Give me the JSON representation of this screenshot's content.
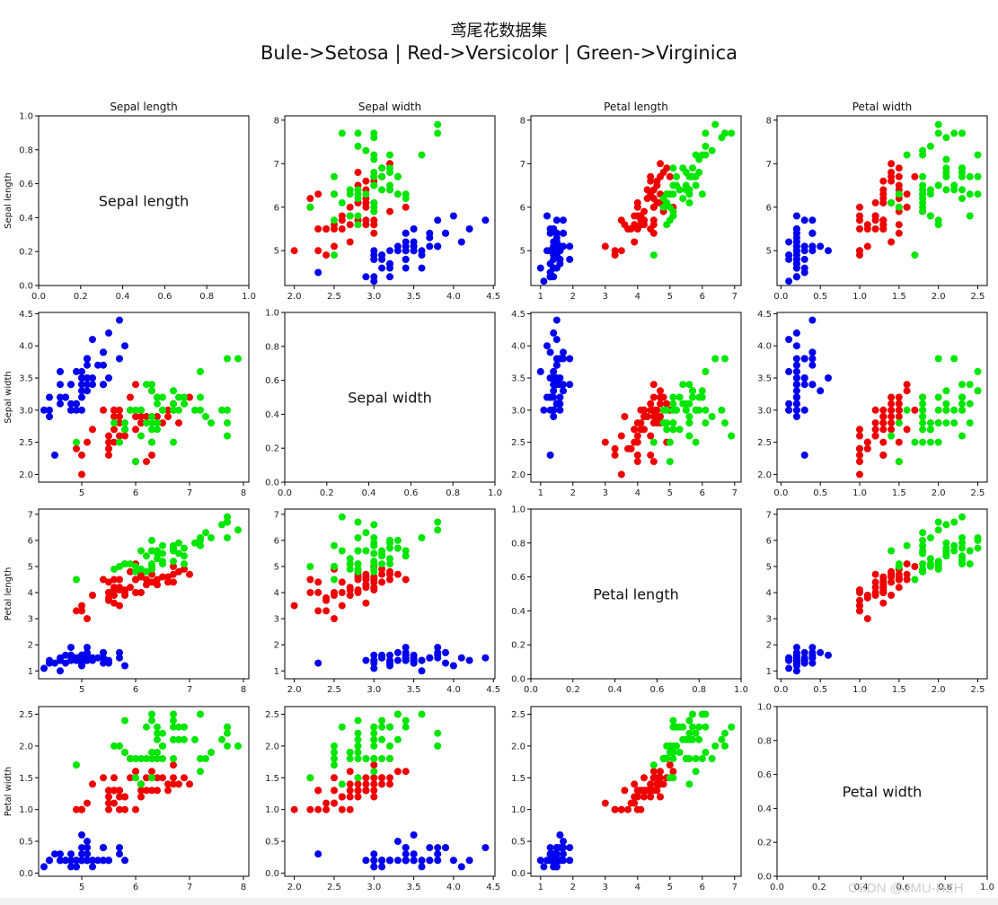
{
  "figure": {
    "title_line1": "鸢尾花数据集",
    "title_line2": "Bule->Setosa | Red->Versicolor | Green->Virginica",
    "watermark": "CSDN @JMU-HZH"
  },
  "colors": {
    "setosa": "#0000ee",
    "versicolor": "#ee0000",
    "virginica": "#00e600",
    "axes": "#000000"
  },
  "chart_data": {
    "type": "scatter",
    "layout": "4x4 scatter matrix",
    "features": [
      "Sepal length",
      "Sepal width",
      "Petal length",
      "Petal width"
    ],
    "col_titles": [
      "Sepal length",
      "Sepal width",
      "Petal length",
      "Petal width"
    ],
    "row_labels": [
      "Sepal length",
      "Sepal width",
      "Petal length",
      "Petal width"
    ],
    "diagonal_labels": [
      "Sepal length",
      "Sepal width",
      "Petal length",
      "Petal width"
    ],
    "diagonal_axes": {
      "xlim": [
        0,
        1
      ],
      "ylim": [
        0,
        1
      ],
      "ticks": [
        0.0,
        0.2,
        0.4,
        0.6,
        0.8,
        1.0
      ],
      "tick_labels": [
        "0.0",
        "0.2",
        "0.4",
        "0.6",
        "0.8",
        "1.0"
      ]
    },
    "feature_axes": [
      {
        "lim": [
          4.2,
          8.1
        ],
        "ticks": [
          5,
          6,
          7,
          8
        ],
        "tick_labels": [
          "5",
          "6",
          "7",
          "8"
        ]
      },
      {
        "lim": [
          1.88,
          4.52
        ],
        "ticks": [
          2.0,
          2.5,
          3.0,
          3.5,
          4.0,
          4.5
        ],
        "tick_labels": [
          "2.0",
          "2.5",
          "3.0",
          "3.5",
          "4.0",
          "4.5"
        ]
      },
      {
        "lim": [
          0.7,
          7.2
        ],
        "ticks": [
          1,
          2,
          3,
          4,
          5,
          6,
          7
        ],
        "tick_labels": [
          "1",
          "2",
          "3",
          "4",
          "5",
          "6",
          "7"
        ]
      },
      {
        "lim": [
          -0.05,
          2.62
        ],
        "ticks": [
          0.0,
          0.5,
          1.0,
          1.5,
          2.0,
          2.5
        ],
        "tick_labels": [
          "0.0",
          "0.5",
          "1.0",
          "1.5",
          "2.0",
          "2.5"
        ]
      }
    ],
    "series": [
      {
        "name": "Setosa",
        "color": "#0000ee",
        "points": [
          [
            5.1,
            3.5,
            1.4,
            0.2
          ],
          [
            4.9,
            3.0,
            1.4,
            0.2
          ],
          [
            4.7,
            3.2,
            1.3,
            0.2
          ],
          [
            4.6,
            3.1,
            1.5,
            0.2
          ],
          [
            5.0,
            3.6,
            1.4,
            0.2
          ],
          [
            5.4,
            3.9,
            1.7,
            0.4
          ],
          [
            4.6,
            3.4,
            1.4,
            0.3
          ],
          [
            5.0,
            3.4,
            1.5,
            0.2
          ],
          [
            4.4,
            2.9,
            1.4,
            0.2
          ],
          [
            4.9,
            3.1,
            1.5,
            0.1
          ],
          [
            5.4,
            3.7,
            1.5,
            0.2
          ],
          [
            4.8,
            3.4,
            1.6,
            0.2
          ],
          [
            4.8,
            3.0,
            1.4,
            0.1
          ],
          [
            4.3,
            3.0,
            1.1,
            0.1
          ],
          [
            5.8,
            4.0,
            1.2,
            0.2
          ],
          [
            5.7,
            4.4,
            1.5,
            0.4
          ],
          [
            5.4,
            3.9,
            1.3,
            0.4
          ],
          [
            5.1,
            3.5,
            1.4,
            0.3
          ],
          [
            5.7,
            3.8,
            1.7,
            0.3
          ],
          [
            5.1,
            3.8,
            1.5,
            0.3
          ],
          [
            5.4,
            3.4,
            1.7,
            0.2
          ],
          [
            5.1,
            3.7,
            1.5,
            0.4
          ],
          [
            4.6,
            3.6,
            1.0,
            0.2
          ],
          [
            5.1,
            3.3,
            1.7,
            0.5
          ],
          [
            4.8,
            3.4,
            1.9,
            0.2
          ],
          [
            5.0,
            3.0,
            1.6,
            0.2
          ],
          [
            5.0,
            3.4,
            1.6,
            0.4
          ],
          [
            5.2,
            3.5,
            1.5,
            0.2
          ],
          [
            5.2,
            3.4,
            1.4,
            0.2
          ],
          [
            4.7,
            3.2,
            1.6,
            0.2
          ],
          [
            4.8,
            3.1,
            1.6,
            0.2
          ],
          [
            5.4,
            3.4,
            1.5,
            0.4
          ],
          [
            5.2,
            4.1,
            1.5,
            0.1
          ],
          [
            5.5,
            4.2,
            1.4,
            0.2
          ],
          [
            4.9,
            3.1,
            1.5,
            0.2
          ],
          [
            5.0,
            3.2,
            1.2,
            0.2
          ],
          [
            5.5,
            3.5,
            1.3,
            0.2
          ],
          [
            4.9,
            3.6,
            1.4,
            0.1
          ],
          [
            4.4,
            3.0,
            1.3,
            0.2
          ],
          [
            5.1,
            3.4,
            1.5,
            0.2
          ],
          [
            5.0,
            3.5,
            1.3,
            0.3
          ],
          [
            4.5,
            2.3,
            1.3,
            0.3
          ],
          [
            4.4,
            3.2,
            1.3,
            0.2
          ],
          [
            5.0,
            3.5,
            1.6,
            0.6
          ],
          [
            5.1,
            3.8,
            1.9,
            0.4
          ],
          [
            4.8,
            3.0,
            1.4,
            0.3
          ],
          [
            5.1,
            3.8,
            1.6,
            0.2
          ],
          [
            4.6,
            3.2,
            1.4,
            0.2
          ],
          [
            5.3,
            3.7,
            1.5,
            0.2
          ],
          [
            5.0,
            3.3,
            1.4,
            0.2
          ]
        ]
      },
      {
        "name": "Versicolor",
        "color": "#ee0000",
        "points": [
          [
            7.0,
            3.2,
            4.7,
            1.4
          ],
          [
            6.4,
            3.2,
            4.5,
            1.5
          ],
          [
            6.9,
            3.1,
            4.9,
            1.5
          ],
          [
            5.5,
            2.3,
            4.0,
            1.3
          ],
          [
            6.5,
            2.8,
            4.6,
            1.5
          ],
          [
            5.7,
            2.8,
            4.5,
            1.3
          ],
          [
            6.3,
            3.3,
            4.7,
            1.6
          ],
          [
            4.9,
            2.4,
            3.3,
            1.0
          ],
          [
            6.6,
            2.9,
            4.6,
            1.3
          ],
          [
            5.2,
            2.7,
            3.9,
            1.4
          ],
          [
            5.0,
            2.0,
            3.5,
            1.0
          ],
          [
            5.9,
            3.0,
            4.2,
            1.5
          ],
          [
            6.0,
            2.2,
            4.0,
            1.0
          ],
          [
            6.1,
            2.9,
            4.7,
            1.4
          ],
          [
            5.6,
            2.9,
            3.6,
            1.3
          ],
          [
            6.7,
            3.1,
            4.4,
            1.4
          ],
          [
            5.6,
            3.0,
            4.5,
            1.5
          ],
          [
            5.8,
            2.7,
            4.1,
            1.0
          ],
          [
            6.2,
            2.2,
            4.5,
            1.5
          ],
          [
            5.6,
            2.5,
            3.9,
            1.1
          ],
          [
            5.9,
            3.2,
            4.8,
            1.8
          ],
          [
            6.1,
            2.8,
            4.0,
            1.3
          ],
          [
            6.3,
            2.5,
            4.9,
            1.5
          ],
          [
            6.1,
            2.8,
            4.7,
            1.2
          ],
          [
            6.4,
            2.9,
            4.3,
            1.3
          ],
          [
            6.6,
            3.0,
            4.4,
            1.4
          ],
          [
            6.8,
            2.8,
            4.8,
            1.4
          ],
          [
            6.7,
            3.0,
            5.0,
            1.7
          ],
          [
            6.0,
            2.9,
            4.5,
            1.5
          ],
          [
            5.7,
            2.6,
            3.5,
            1.0
          ],
          [
            5.5,
            2.4,
            3.8,
            1.1
          ],
          [
            5.5,
            2.4,
            3.7,
            1.0
          ],
          [
            5.8,
            2.7,
            3.9,
            1.2
          ],
          [
            6.0,
            2.7,
            5.1,
            1.6
          ],
          [
            5.4,
            3.0,
            4.5,
            1.5
          ],
          [
            6.0,
            3.4,
            4.5,
            1.6
          ],
          [
            6.7,
            3.1,
            4.7,
            1.5
          ],
          [
            6.3,
            2.3,
            4.4,
            1.3
          ],
          [
            5.6,
            3.0,
            4.1,
            1.3
          ],
          [
            5.5,
            2.5,
            4.0,
            1.3
          ],
          [
            5.5,
            2.6,
            4.4,
            1.2
          ],
          [
            6.1,
            3.0,
            4.6,
            1.4
          ],
          [
            5.8,
            2.6,
            4.0,
            1.2
          ],
          [
            5.0,
            2.3,
            3.3,
            1.0
          ],
          [
            5.6,
            2.7,
            4.2,
            1.3
          ],
          [
            5.7,
            3.0,
            4.2,
            1.2
          ],
          [
            5.7,
            2.9,
            4.2,
            1.3
          ],
          [
            6.2,
            2.9,
            4.3,
            1.3
          ],
          [
            5.1,
            2.5,
            3.0,
            1.1
          ],
          [
            5.7,
            2.8,
            4.1,
            1.3
          ]
        ]
      },
      {
        "name": "Virginica",
        "color": "#00e600",
        "points": [
          [
            6.3,
            3.3,
            6.0,
            2.5
          ],
          [
            5.8,
            2.7,
            5.1,
            1.9
          ],
          [
            7.1,
            3.0,
            5.9,
            2.1
          ],
          [
            6.3,
            2.9,
            5.6,
            1.8
          ],
          [
            6.5,
            3.0,
            5.8,
            2.2
          ],
          [
            7.6,
            3.0,
            6.6,
            2.1
          ],
          [
            4.9,
            2.5,
            4.5,
            1.7
          ],
          [
            7.3,
            2.9,
            6.3,
            1.8
          ],
          [
            6.7,
            2.5,
            5.8,
            1.8
          ],
          [
            7.2,
            3.6,
            6.1,
            2.5
          ],
          [
            6.5,
            3.2,
            5.1,
            2.0
          ],
          [
            6.4,
            2.7,
            5.3,
            1.9
          ],
          [
            6.8,
            3.0,
            5.5,
            2.1
          ],
          [
            5.7,
            2.5,
            5.0,
            2.0
          ],
          [
            5.8,
            2.8,
            5.1,
            2.4
          ],
          [
            6.4,
            3.2,
            5.3,
            2.3
          ],
          [
            6.5,
            3.0,
            5.5,
            1.8
          ],
          [
            7.7,
            3.8,
            6.7,
            2.2
          ],
          [
            7.7,
            2.6,
            6.9,
            2.3
          ],
          [
            6.0,
            2.2,
            5.0,
            1.5
          ],
          [
            6.9,
            3.2,
            5.7,
            2.3
          ],
          [
            5.6,
            2.8,
            4.9,
            2.0
          ],
          [
            7.7,
            2.8,
            6.7,
            2.0
          ],
          [
            6.3,
            2.7,
            4.9,
            1.8
          ],
          [
            6.7,
            3.3,
            5.7,
            2.1
          ],
          [
            7.2,
            3.2,
            6.0,
            1.8
          ],
          [
            6.2,
            2.8,
            4.8,
            1.8
          ],
          [
            6.1,
            3.0,
            4.9,
            1.8
          ],
          [
            6.4,
            2.8,
            5.6,
            2.1
          ],
          [
            7.2,
            3.0,
            5.8,
            1.6
          ],
          [
            7.4,
            2.8,
            6.1,
            1.9
          ],
          [
            7.9,
            3.8,
            6.4,
            2.0
          ],
          [
            6.4,
            2.8,
            5.6,
            2.2
          ],
          [
            6.3,
            2.8,
            5.1,
            1.5
          ],
          [
            6.1,
            2.6,
            5.6,
            1.4
          ],
          [
            7.7,
            3.0,
            6.1,
            2.3
          ],
          [
            6.3,
            3.4,
            5.6,
            2.4
          ],
          [
            6.4,
            3.1,
            5.5,
            1.8
          ],
          [
            6.0,
            3.0,
            4.8,
            1.8
          ],
          [
            6.9,
            3.1,
            5.4,
            2.1
          ],
          [
            6.7,
            3.1,
            5.6,
            2.4
          ],
          [
            6.9,
            3.1,
            5.1,
            2.3
          ],
          [
            5.8,
            2.7,
            5.1,
            1.9
          ],
          [
            6.8,
            3.2,
            5.9,
            2.3
          ],
          [
            6.7,
            3.3,
            5.7,
            2.5
          ],
          [
            6.7,
            3.0,
            5.2,
            2.3
          ],
          [
            6.3,
            2.5,
            5.0,
            1.9
          ],
          [
            6.5,
            3.0,
            5.2,
            2.0
          ],
          [
            6.2,
            3.4,
            5.4,
            2.3
          ],
          [
            5.9,
            3.0,
            5.1,
            1.8
          ]
        ]
      }
    ]
  }
}
